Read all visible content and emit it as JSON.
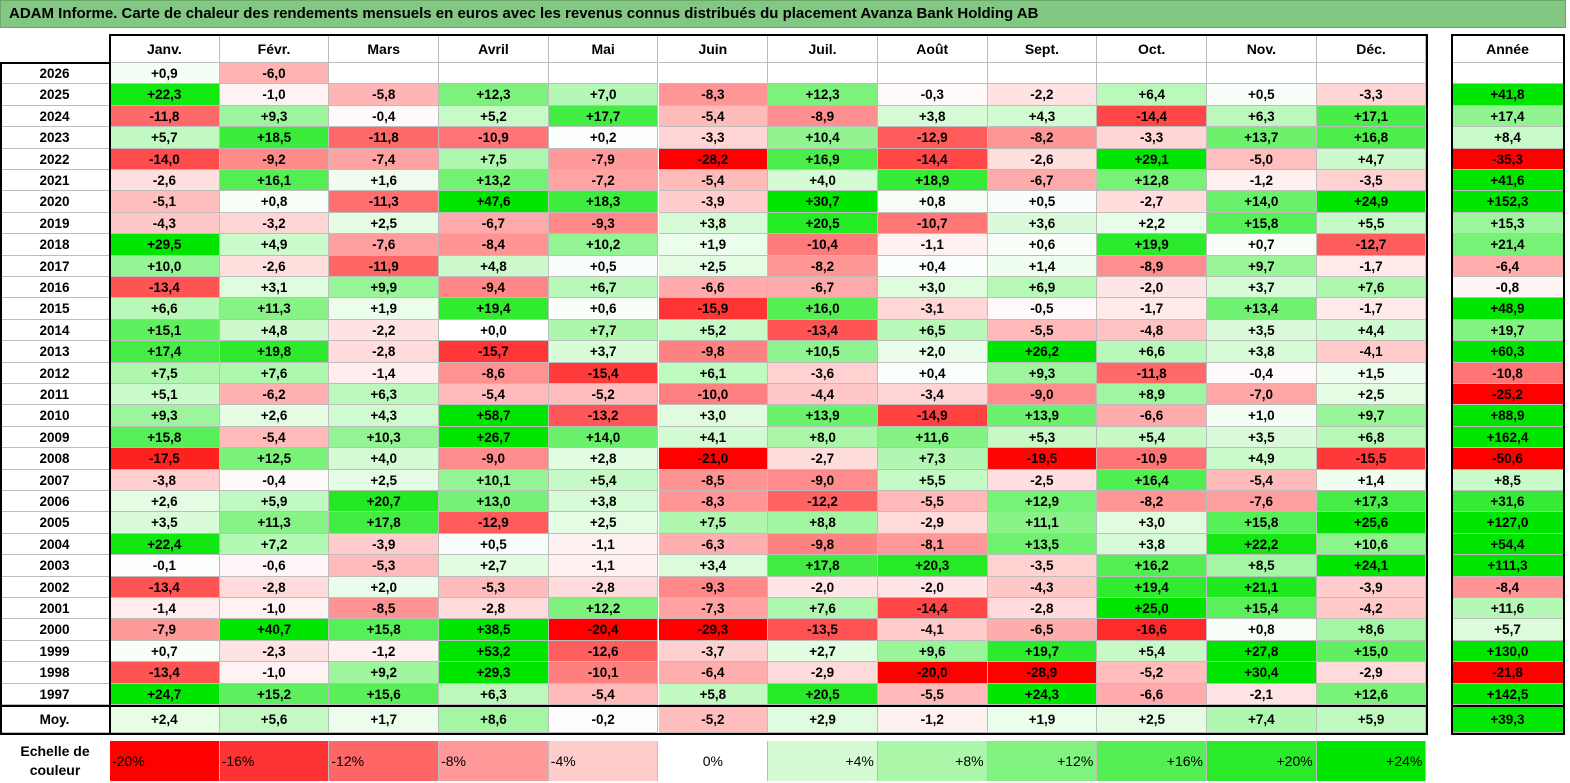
{
  "title": "ADAM Informe. Carte de chaleur des rendements mensuels en euros avec les revenus connus distribués du placement Avanza Bank Holding AB",
  "chart_data": {
    "type": "heatmap",
    "columns": [
      "Janv.",
      "Févr.",
      "Mars",
      "Avril",
      "Mai",
      "Juin",
      "Juil.",
      "Août",
      "Sept.",
      "Oct.",
      "Nov.",
      "Déc."
    ],
    "year_header": "Année",
    "average_label": "Moy.",
    "rows": [
      {
        "year": "2026",
        "months": [
          "+0,9",
          "-6,0",
          "",
          "",
          "",
          "",
          "",
          "",
          "",
          "",
          "",
          ""
        ],
        "annual": ""
      },
      {
        "year": "2025",
        "months": [
          "+22,3",
          "-1,0",
          "-5,8",
          "+12,3",
          "+7,0",
          "-8,3",
          "+12,3",
          "-0,3",
          "-2,2",
          "+6,4",
          "+0,5",
          "-3,3"
        ],
        "annual": "+41,8"
      },
      {
        "year": "2024",
        "months": [
          "-11,8",
          "+9,3",
          "-0,4",
          "+5,2",
          "+17,7",
          "-5,4",
          "-8,9",
          "+3,8",
          "+4,3",
          "-14,4",
          "+6,3",
          "+17,1"
        ],
        "annual": "+17,4"
      },
      {
        "year": "2023",
        "months": [
          "+5,7",
          "+18,5",
          "-11,8",
          "-10,9",
          "+0,2",
          "-3,3",
          "+10,4",
          "-12,9",
          "-8,2",
          "-3,3",
          "+13,7",
          "+16,8"
        ],
        "annual": "+8,4"
      },
      {
        "year": "2022",
        "months": [
          "-14,0",
          "-9,2",
          "-7,4",
          "+7,5",
          "-7,9",
          "-28,2",
          "+16,9",
          "-14,4",
          "-2,6",
          "+29,1",
          "-5,0",
          "+4,7"
        ],
        "annual": "-35,3"
      },
      {
        "year": "2021",
        "months": [
          "-2,6",
          "+16,1",
          "+1,6",
          "+13,2",
          "-7,2",
          "-5,4",
          "+4,0",
          "+18,9",
          "-6,7",
          "+12,8",
          "-1,2",
          "-3,5"
        ],
        "annual": "+41,6"
      },
      {
        "year": "2020",
        "months": [
          "-5,1",
          "+0,8",
          "-11,3",
          "+47,6",
          "+18,3",
          "-3,9",
          "+30,7",
          "+0,8",
          "+0,5",
          "-2,7",
          "+14,0",
          "+24,9"
        ],
        "annual": "+152,3"
      },
      {
        "year": "2019",
        "months": [
          "-4,3",
          "-3,2",
          "+2,5",
          "-6,7",
          "-9,3",
          "+3,8",
          "+20,5",
          "-10,7",
          "+3,6",
          "+2,2",
          "+15,8",
          "+5,5"
        ],
        "annual": "+15,3"
      },
      {
        "year": "2018",
        "months": [
          "+29,5",
          "+4,9",
          "-7,6",
          "-8,4",
          "+10,2",
          "+1,9",
          "-10,4",
          "-1,1",
          "+0,6",
          "+19,9",
          "+0,7",
          "-12,7"
        ],
        "annual": "+21,4"
      },
      {
        "year": "2017",
        "months": [
          "+10,0",
          "-2,6",
          "-11,9",
          "+4,8",
          "+0,5",
          "+2,5",
          "-8,2",
          "+0,4",
          "+1,4",
          "-8,9",
          "+9,7",
          "-1,7"
        ],
        "annual": "-6,4"
      },
      {
        "year": "2016",
        "months": [
          "-13,4",
          "+3,1",
          "+9,9",
          "-9,4",
          "+6,7",
          "-6,6",
          "-6,7",
          "+3,0",
          "+6,9",
          "-2,0",
          "+3,7",
          "+7,6"
        ],
        "annual": "-0,8"
      },
      {
        "year": "2015",
        "months": [
          "+6,6",
          "+11,3",
          "+1,9",
          "+19,4",
          "+0,6",
          "-15,9",
          "+16,0",
          "-3,1",
          "-0,5",
          "-1,7",
          "+13,4",
          "-1,7"
        ],
        "annual": "+48,9"
      },
      {
        "year": "2014",
        "months": [
          "+15,1",
          "+4,8",
          "-2,2",
          "+0,0",
          "+7,7",
          "+5,2",
          "-13,4",
          "+6,5",
          "-5,5",
          "-4,8",
          "+3,5",
          "+4,4"
        ],
        "annual": "+19,7"
      },
      {
        "year": "2013",
        "months": [
          "+17,4",
          "+19,8",
          "-2,8",
          "-15,7",
          "+3,7",
          "-9,8",
          "+10,5",
          "+2,0",
          "+26,2",
          "+6,6",
          "+3,8",
          "-4,1"
        ],
        "annual": "+60,3"
      },
      {
        "year": "2012",
        "months": [
          "+7,5",
          "+7,6",
          "-1,4",
          "-8,6",
          "-15,4",
          "+6,1",
          "-3,6",
          "+0,4",
          "+9,3",
          "-11,8",
          "-0,4",
          "+1,5"
        ],
        "annual": "-10,8"
      },
      {
        "year": "2011",
        "months": [
          "+5,1",
          "-6,2",
          "+6,3",
          "-5,4",
          "-5,2",
          "-10,0",
          "-4,4",
          "-3,4",
          "-9,0",
          "+8,9",
          "-7,0",
          "+2,5"
        ],
        "annual": "-25,2"
      },
      {
        "year": "2010",
        "months": [
          "+9,3",
          "+2,6",
          "+4,3",
          "+58,7",
          "-13,2",
          "+3,0",
          "+13,9",
          "-14,9",
          "+13,9",
          "-6,6",
          "+1,0",
          "+9,7"
        ],
        "annual": "+88,9"
      },
      {
        "year": "2009",
        "months": [
          "+15,8",
          "-5,4",
          "+10,3",
          "+26,7",
          "+14,0",
          "+4,1",
          "+8,0",
          "+11,6",
          "+5,3",
          "+5,4",
          "+3,5",
          "+6,8"
        ],
        "annual": "+162,4"
      },
      {
        "year": "2008",
        "months": [
          "-17,5",
          "+12,5",
          "+4,0",
          "-9,0",
          "+2,8",
          "-21,0",
          "-2,7",
          "+7,3",
          "-19,5",
          "-10,9",
          "+4,9",
          "-15,5"
        ],
        "annual": "-50,6"
      },
      {
        "year": "2007",
        "months": [
          "-3,8",
          "-0,4",
          "+2,5",
          "+10,1",
          "+5,4",
          "-8,5",
          "-9,0",
          "+5,5",
          "-2,5",
          "+16,4",
          "-5,4",
          "+1,4"
        ],
        "annual": "+8,5"
      },
      {
        "year": "2006",
        "months": [
          "+2,6",
          "+5,9",
          "+20,7",
          "+13,0",
          "+3,8",
          "-8,3",
          "-12,2",
          "-5,5",
          "+12,9",
          "-8,2",
          "-7,6",
          "+17,3"
        ],
        "annual": "+31,6"
      },
      {
        "year": "2005",
        "months": [
          "+3,5",
          "+11,3",
          "+17,8",
          "-12,9",
          "+2,5",
          "+7,5",
          "+8,8",
          "-2,9",
          "+11,1",
          "+3,0",
          "+15,8",
          "+25,6"
        ],
        "annual": "+127,0"
      },
      {
        "year": "2004",
        "months": [
          "+22,4",
          "+7,2",
          "-3,9",
          "+0,5",
          "-1,1",
          "-6,3",
          "-9,8",
          "-8,1",
          "+13,5",
          "+3,8",
          "+22,2",
          "+10,6"
        ],
        "annual": "+54,4"
      },
      {
        "year": "2003",
        "months": [
          "-0,1",
          "-0,6",
          "-5,3",
          "+2,7",
          "-1,1",
          "+3,4",
          "+17,8",
          "+20,3",
          "-3,5",
          "+16,2",
          "+8,5",
          "+24,1"
        ],
        "annual": "+111,3"
      },
      {
        "year": "2002",
        "months": [
          "-13,4",
          "-2,8",
          "+2,0",
          "-5,3",
          "-2,8",
          "-9,3",
          "-2,0",
          "-2,0",
          "-4,3",
          "+19,4",
          "+21,1",
          "-3,9"
        ],
        "annual": "-8,4"
      },
      {
        "year": "2001",
        "months": [
          "-1,4",
          "-1,0",
          "-8,5",
          "-2,8",
          "+12,2",
          "-7,3",
          "+7,6",
          "-14,4",
          "-2,8",
          "+25,0",
          "+15,4",
          "-4,2"
        ],
        "annual": "+11,6"
      },
      {
        "year": "2000",
        "months": [
          "-7,9",
          "+40,7",
          "+15,8",
          "+38,5",
          "-20,4",
          "-29,3",
          "-13,5",
          "-4,1",
          "-6,5",
          "-16,6",
          "+0,8",
          "+8,6"
        ],
        "annual": "+5,7"
      },
      {
        "year": "1999",
        "months": [
          "+0,7",
          "-2,3",
          "-1,2",
          "+53,2",
          "-12,6",
          "-3,7",
          "+2,7",
          "+9,6",
          "+19,7",
          "+5,4",
          "+27,8",
          "+15,0"
        ],
        "annual": "+130,0"
      },
      {
        "year": "1998",
        "months": [
          "-13,4",
          "-1,0",
          "+9,2",
          "+29,3",
          "-10,1",
          "-6,4",
          "-2,9",
          "-20,0",
          "-28,9",
          "-5,2",
          "+30,4",
          "-2,9"
        ],
        "annual": "-21,8"
      },
      {
        "year": "1997",
        "months": [
          "+24,7",
          "+15,2",
          "+15,6",
          "+6,3",
          "-5,4",
          "+5,8",
          "+20,5",
          "-5,5",
          "+24,3",
          "-6,6",
          "-2,1",
          "+12,6"
        ],
        "annual": "+142,5"
      }
    ],
    "average": {
      "months": [
        "+2,4",
        "+5,6",
        "+1,7",
        "+8,6",
        "-0,2",
        "-5,2",
        "+2,9",
        "-1,2",
        "+1,9",
        "+2,5",
        "+7,4",
        "+5,9"
      ],
      "annual": "+39,3"
    },
    "scale_label": "Echelle de couleur",
    "scale": [
      "-20%",
      "-16%",
      "-12%",
      "-8%",
      "-4%",
      "0%",
      "+4%",
      "+8%",
      "+12%",
      "+16%",
      "+20%",
      "+24%"
    ],
    "colors": {
      "negative_max": "#ff0000",
      "positive_max": "#00e600",
      "neutral": "#ffffff",
      "title_bg": "#82c782"
    }
  }
}
